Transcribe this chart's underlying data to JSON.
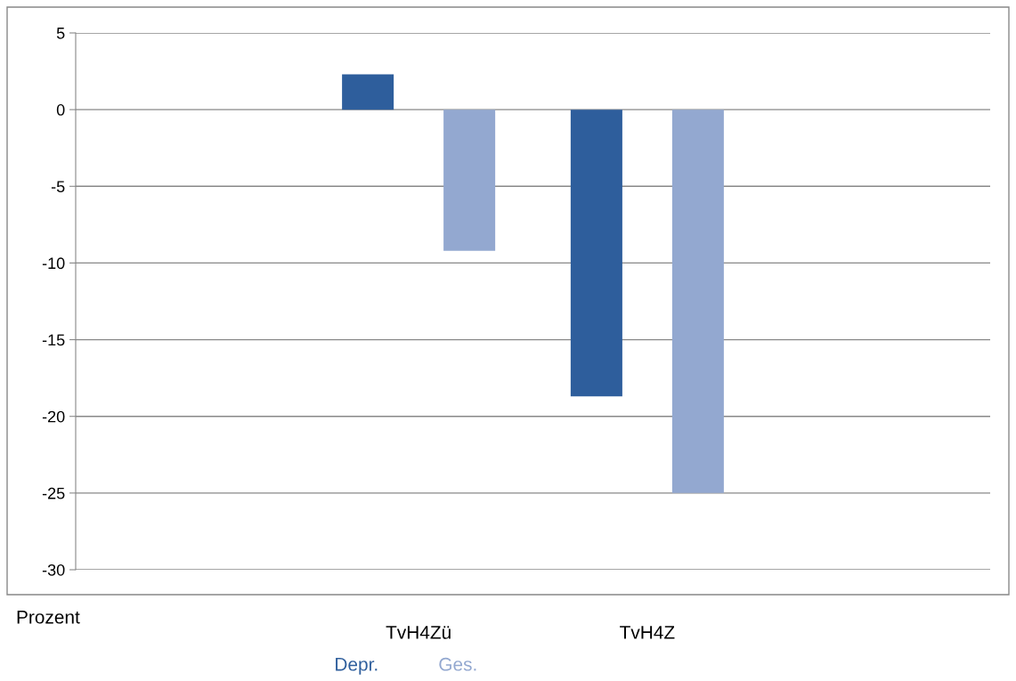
{
  "chart_data": {
    "type": "bar",
    "categories": [
      null,
      "TvH4Zü",
      "TvH4Z",
      null
    ],
    "series": [
      {
        "name": "Depr.",
        "color": "#2e5e9c",
        "values": [
          null,
          2.3,
          -18.7,
          null
        ]
      },
      {
        "name": "Ges.",
        "color": "#93a8d0",
        "values": [
          null,
          -9.2,
          -25.0,
          null
        ]
      }
    ],
    "ylim": [
      -30,
      5
    ],
    "yticks": [
      -30,
      -25,
      -20,
      -15,
      -10,
      -5,
      0,
      5
    ],
    "grid": "y",
    "legend": "bottom",
    "annotations": [
      "Prozent"
    ]
  }
}
